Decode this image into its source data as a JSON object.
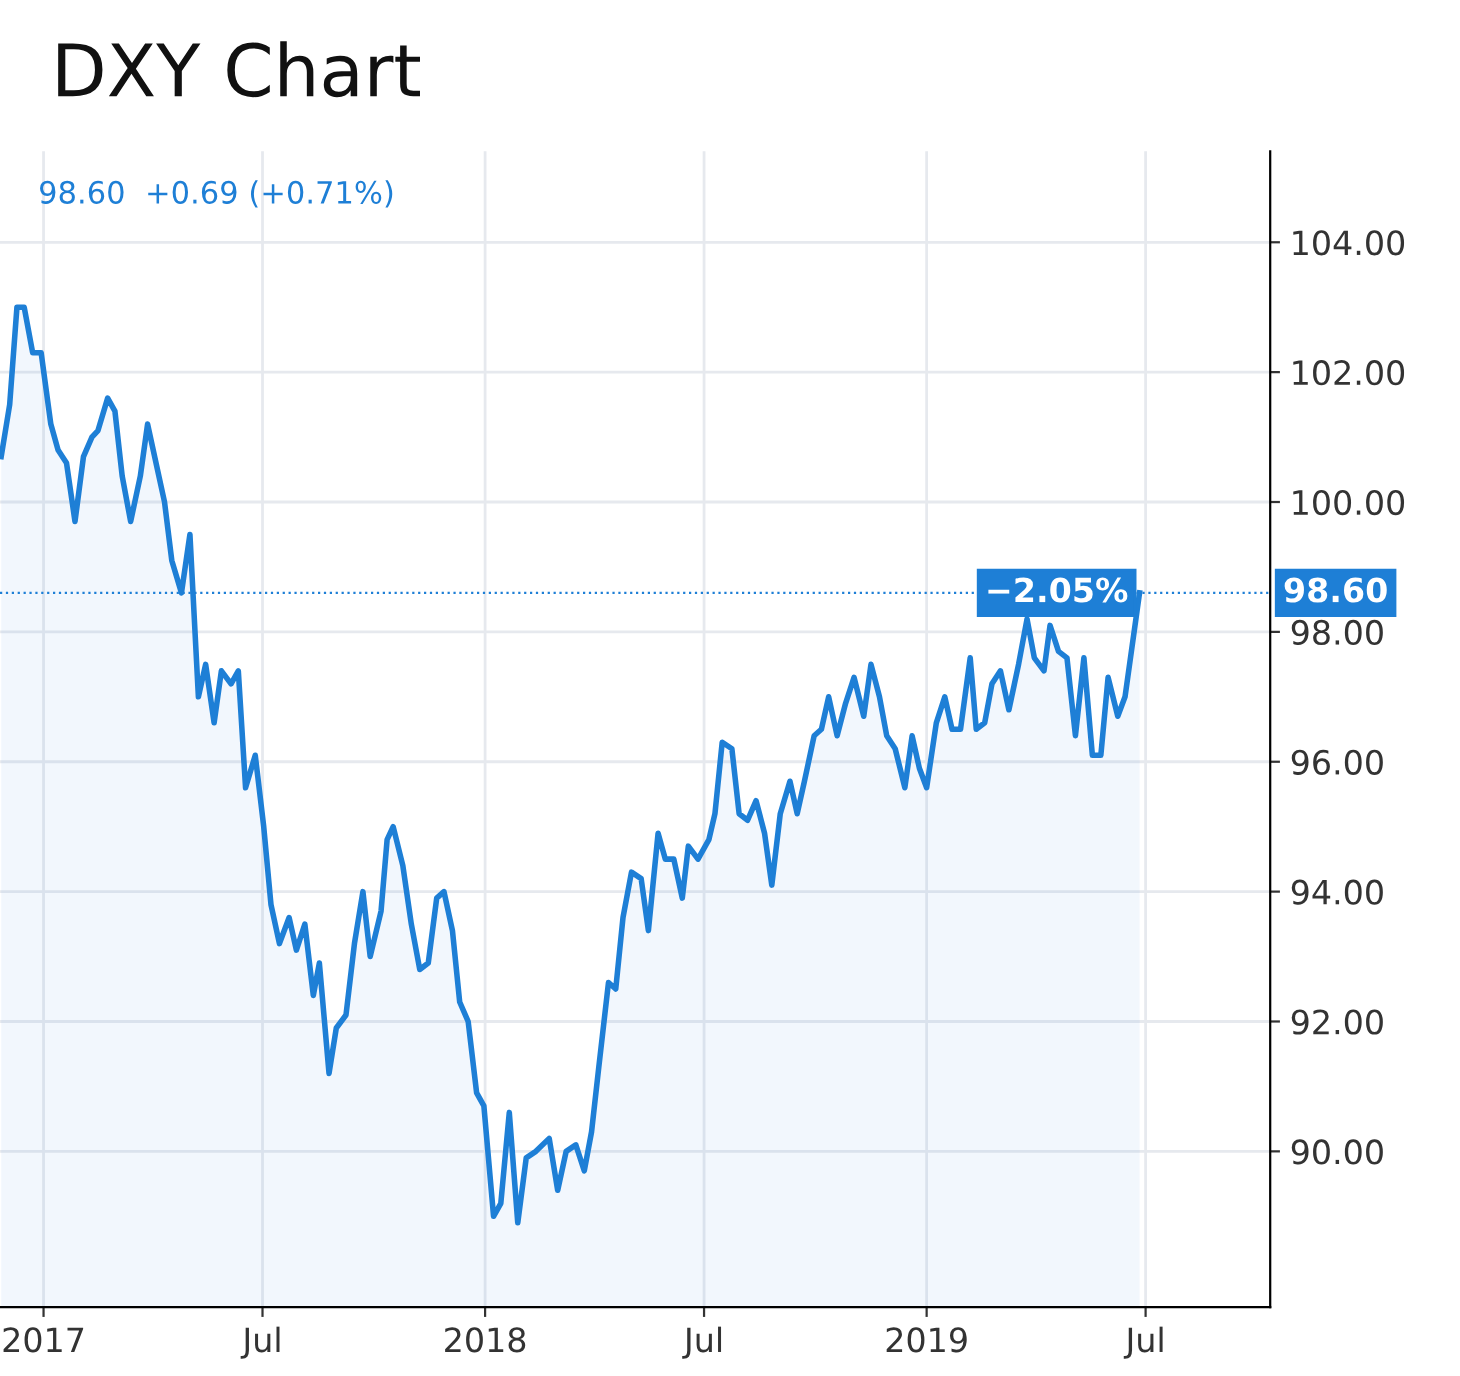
{
  "chart_data": {
    "type": "area",
    "title": "DXY Chart",
    "annotations": [
      "98.60  +0.69 (+0.71%)",
      {
        "text": "−2.05%",
        "x": "2019-06-26",
        "y": 98.6
      }
    ],
    "x": [
      "2016-11-27",
      "2016-12-04",
      "2016-12-10",
      "2016-12-16",
      "2016-12-23",
      "2016-12-30",
      "2017-01-07",
      "2017-01-13",
      "2017-01-20",
      "2017-01-27",
      "2017-02-03",
      "2017-02-10",
      "2017-02-15",
      "2017-02-23",
      "2017-03-01",
      "2017-03-07",
      "2017-03-14",
      "2017-03-22",
      "2017-03-28",
      "2017-04-04",
      "2017-04-11",
      "2017-04-17",
      "2017-04-25",
      "2017-05-02",
      "2017-05-09",
      "2017-05-15",
      "2017-05-22",
      "2017-05-28",
      "2017-06-05",
      "2017-06-11",
      "2017-06-17",
      "2017-06-25",
      "2017-07-02",
      "2017-07-08",
      "2017-07-15",
      "2017-07-23",
      "2017-07-29",
      "2017-08-05",
      "2017-08-12",
      "2017-08-17",
      "2017-08-25",
      "2017-08-31",
      "2017-09-08",
      "2017-09-15",
      "2017-09-22",
      "2017-09-28",
      "2017-10-07",
      "2017-10-12",
      "2017-10-17",
      "2017-10-25",
      "2017-11-01",
      "2017-11-08",
      "2017-11-15",
      "2017-11-22",
      "2017-11-28",
      "2017-12-05",
      "2017-12-11",
      "2017-12-18",
      "2017-12-25",
      "2017-12-31",
      "2018-01-08",
      "2018-01-14",
      "2018-01-21",
      "2018-01-28",
      "2018-02-04",
      "2018-02-12",
      "2018-02-23",
      "2018-03-02",
      "2018-03-09",
      "2018-03-17",
      "2018-03-24",
      "2018-03-30",
      "2018-04-05",
      "2018-04-13",
      "2018-04-19",
      "2018-04-25",
      "2018-05-02",
      "2018-05-10",
      "2018-05-16",
      "2018-05-24",
      "2018-05-30",
      "2018-06-06",
      "2018-06-13",
      "2018-06-18",
      "2018-06-26",
      "2018-07-05",
      "2018-07-10",
      "2018-07-16",
      "2018-07-24",
      "2018-07-30",
      "2018-08-06",
      "2018-08-13",
      "2018-08-20",
      "2018-08-26",
      "2018-09-02",
      "2018-09-10",
      "2018-09-16",
      "2018-09-22",
      "2018-09-30",
      "2018-10-06",
      "2018-10-12",
      "2018-10-19",
      "2018-10-26",
      "2018-11-02",
      "2018-11-10",
      "2018-11-16",
      "2018-11-23",
      "2018-11-29",
      "2018-12-06",
      "2018-12-14",
      "2018-12-20",
      "2018-12-26",
      "2019-01-01",
      "2019-01-09",
      "2019-01-16",
      "2019-01-22",
      "2019-01-29",
      "2019-02-06",
      "2019-02-11",
      "2019-02-18",
      "2019-02-24",
      "2019-03-03",
      "2019-03-10",
      "2019-03-18",
      "2019-03-25",
      "2019-03-31",
      "2019-04-08",
      "2019-04-13",
      "2019-04-20",
      "2019-04-27",
      "2019-05-04",
      "2019-05-11",
      "2019-05-18",
      "2019-05-25",
      "2019-05-31",
      "2019-06-08",
      "2019-06-14",
      "2019-06-20",
      "2019-06-26"
    ],
    "series": [
      {
        "color": "#1e7fd6",
        "values": [
          100.7,
          101.5,
          103.0,
          103.0,
          102.3,
          102.3,
          101.2,
          100.8,
          100.6,
          99.7,
          100.7,
          101.0,
          101.1,
          101.6,
          101.4,
          100.4,
          99.7,
          100.4,
          101.2,
          100.6,
          100.0,
          99.1,
          98.6,
          99.5,
          97.0,
          97.5,
          96.6,
          97.4,
          97.2,
          97.4,
          95.6,
          96.1,
          95.0,
          93.8,
          93.2,
          93.6,
          93.1,
          93.5,
          92.4,
          92.9,
          91.2,
          91.9,
          92.1,
          93.2,
          94.0,
          93.0,
          93.7,
          94.8,
          95.0,
          94.4,
          93.5,
          92.8,
          92.9,
          93.9,
          94.0,
          93.4,
          92.3,
          92.0,
          90.9,
          90.7,
          89.0,
          89.2,
          90.6,
          88.9,
          89.9,
          90.0,
          90.2,
          89.4,
          90.0,
          90.1,
          89.7,
          90.3,
          91.3,
          92.6,
          92.5,
          93.6,
          94.3,
          94.2,
          93.4,
          94.9,
          94.5,
          94.5,
          93.9,
          94.7,
          94.5,
          94.8,
          95.2,
          96.3,
          96.2,
          95.2,
          95.1,
          95.4,
          94.9,
          94.1,
          95.2,
          95.7,
          95.2,
          95.7,
          96.4,
          96.5,
          97.0,
          96.4,
          96.9,
          97.3,
          96.7,
          97.5,
          97.0,
          96.4,
          96.2,
          95.6,
          96.4,
          95.9,
          95.6,
          96.6,
          97.0,
          96.5,
          96.5,
          97.6,
          96.5,
          96.6,
          97.2,
          97.4,
          96.8,
          97.5,
          98.2,
          97.6,
          97.4,
          98.1,
          97.7,
          97.6,
          96.4,
          97.6,
          96.1,
          96.1,
          97.3,
          96.7,
          97.0,
          97.8,
          98.6
        ]
      }
    ],
    "ref_lines": [
      {
        "axis": "y",
        "value": 98.6,
        "label": "98.60",
        "color": "#1e7fd6",
        "line_style": "dotted"
      }
    ],
    "xlim": [
      "2016-11-26",
      "2019-10-12"
    ],
    "xticks": [
      {
        "value": "2017-01-01",
        "label": "2017"
      },
      {
        "value": "2017-07-01",
        "label": "Jul"
      },
      {
        "value": "2018-01-01",
        "label": "2018"
      },
      {
        "value": "2018-07-01",
        "label": "Jul"
      },
      {
        "value": "2019-01-01",
        "label": "2019"
      },
      {
        "value": "2019-07-01",
        "label": "Jul"
      }
    ],
    "ylim": [
      87.6,
      105.4
    ],
    "yticks": [
      {
        "value": 90,
        "label": "90.00"
      },
      {
        "value": 92,
        "label": "92.00"
      },
      {
        "value": 94,
        "label": "94.00"
      },
      {
        "value": 96,
        "label": "96.00"
      },
      {
        "value": 98,
        "label": "98.00"
      },
      {
        "value": 100,
        "label": "100.00"
      },
      {
        "value": 102,
        "label": "102.00"
      },
      {
        "value": 104,
        "label": "104.00"
      }
    ],
    "grid": true,
    "legend": false,
    "line_style": "solid",
    "marker": "none"
  }
}
